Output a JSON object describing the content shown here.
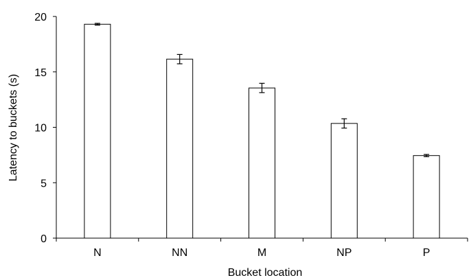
{
  "chart_data": {
    "type": "bar",
    "title": "",
    "xlabel": "Bucket location",
    "ylabel": "Latency to buckets (s)",
    "categories": [
      "N",
      "NN",
      "M",
      "NP",
      "P"
    ],
    "values": [
      19.3,
      16.15,
      13.55,
      10.35,
      7.45
    ],
    "errors": [
      0.08,
      0.42,
      0.42,
      0.42,
      0.1
    ],
    "ylim": [
      0,
      20
    ],
    "yticks": [
      0,
      5,
      10,
      15,
      20
    ],
    "grid": false,
    "legend": "none",
    "colors": {
      "bar_fill": "#ffffff",
      "bar_stroke": "#000000",
      "axis": "#000000"
    }
  }
}
